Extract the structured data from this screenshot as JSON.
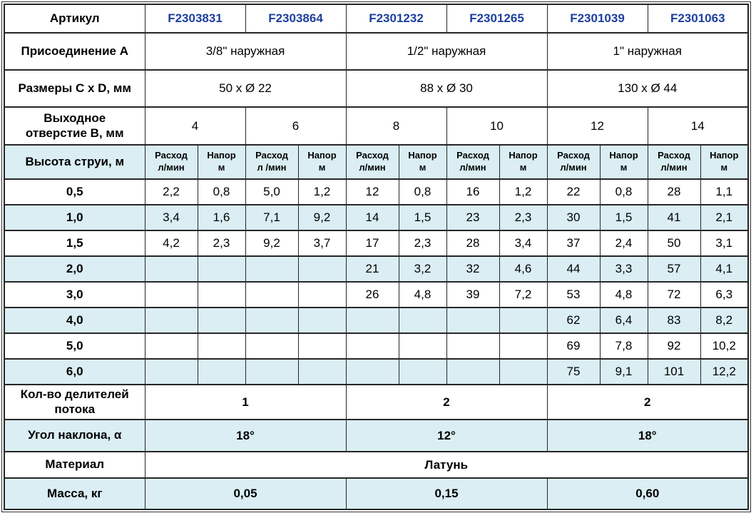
{
  "colors": {
    "article_blue": "#1e3f9e",
    "stripe_blue": "#daeef3",
    "border_dark": "#262626",
    "page_bg": "#ffffff"
  },
  "table": {
    "articul": {
      "label": "Артикул",
      "values": [
        "F2303831",
        "F2303864",
        "F2301232",
        "F2301265",
        "F2301039",
        "F2301063"
      ]
    },
    "connection": {
      "label": "Присоединение A",
      "values": [
        "3/8\" наружная",
        "1/2\" наружная",
        "1\" наружная"
      ]
    },
    "dimensions": {
      "label": "Размеры C x D, мм",
      "values": [
        "50 x Ø 22",
        "88 x Ø 30",
        "130 x Ø 44"
      ]
    },
    "outlet": {
      "label_line1": "Выходное",
      "label_line2": "отверстие B, мм",
      "values": [
        "4",
        "6",
        "8",
        "10",
        "12",
        "14"
      ]
    },
    "jet": {
      "label": "Высота струи, м",
      "cols": [
        {
          "top": "Расход",
          "bottom": "л/мин"
        },
        {
          "top": "Напор",
          "bottom": "м"
        },
        {
          "top": "Расход",
          "bottom": "л /мин"
        },
        {
          "top": "Напор",
          "bottom": "м"
        },
        {
          "top": "Расход",
          "bottom": "л/мин"
        },
        {
          "top": "Напор",
          "bottom": "м"
        },
        {
          "top": "Расход",
          "bottom": "л/мин"
        },
        {
          "top": "Напор",
          "bottom": "м"
        },
        {
          "top": "Расход",
          "bottom": "л/мин"
        },
        {
          "top": "Напор",
          "bottom": "м"
        },
        {
          "top": "Расход",
          "bottom": "л/мин"
        },
        {
          "top": "Напор",
          "bottom": "м"
        }
      ]
    },
    "data_rows": [
      {
        "label": "0,5",
        "values": [
          "2,2",
          "0,8",
          "5,0",
          "1,2",
          "12",
          "0,8",
          "16",
          "1,2",
          "22",
          "0,8",
          "28",
          "1,1"
        ]
      },
      {
        "label": "1,0",
        "values": [
          "3,4",
          "1,6",
          "7,1",
          "9,2",
          "14",
          "1,5",
          "23",
          "2,3",
          "30",
          "1,5",
          "41",
          "2,1"
        ]
      },
      {
        "label": "1,5",
        "values": [
          "4,2",
          "2,3",
          "9,2",
          "3,7",
          "17",
          "2,3",
          "28",
          "3,4",
          "37",
          "2,4",
          "50",
          "3,1"
        ]
      },
      {
        "label": "2,0",
        "values": [
          "",
          "",
          "",
          "",
          "21",
          "3,2",
          "32",
          "4,6",
          "44",
          "3,3",
          "57",
          "4,1"
        ]
      },
      {
        "label": "3,0",
        "values": [
          "",
          "",
          "",
          "",
          "26",
          "4,8",
          "39",
          "7,2",
          "53",
          "4,8",
          "72",
          "6,3"
        ]
      },
      {
        "label": "4,0",
        "values": [
          "",
          "",
          "",
          "",
          "",
          "",
          "",
          "",
          "62",
          "6,4",
          "83",
          "8,2"
        ]
      },
      {
        "label": "5,0",
        "values": [
          "",
          "",
          "",
          "",
          "",
          "",
          "",
          "",
          "69",
          "7,8",
          "92",
          "10,2"
        ]
      },
      {
        "label": "6,0",
        "values": [
          "",
          "",
          "",
          "",
          "",
          "",
          "",
          "",
          "75",
          "9,1",
          "101",
          "12,2"
        ]
      }
    ],
    "dividers": {
      "label_line1": "Кол-во делителей",
      "label_line2": "потока",
      "values": [
        "1",
        "2",
        "2"
      ]
    },
    "angle": {
      "label": "Угол наклона, α",
      "values": [
        "18°",
        "12°",
        "18°"
      ]
    },
    "material": {
      "label": "Материал",
      "value": "Латунь"
    },
    "mass": {
      "label": "Масса, кг",
      "values": [
        "0,05",
        "0,15",
        "0,60"
      ]
    }
  }
}
